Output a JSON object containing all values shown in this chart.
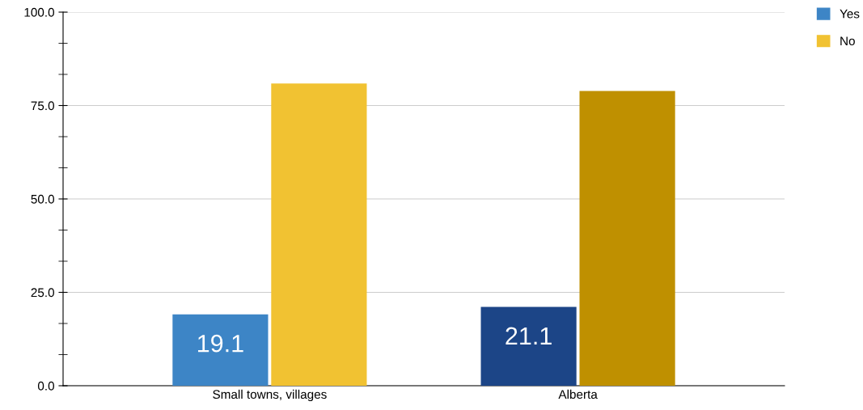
{
  "chart_data": {
    "type": "bar",
    "categories": [
      "Small towns, villages",
      "Alberta"
    ],
    "series": [
      {
        "name": "Yes",
        "color": "#3d85c6",
        "colors": [
          "#3d85c6",
          "#1c4587"
        ],
        "values": [
          19.1,
          21.1
        ],
        "value_labels": [
          "19.1",
          "21.1"
        ]
      },
      {
        "name": "No",
        "color": "#f1c232",
        "colors": [
          "#f1c232",
          "#bf9000"
        ],
        "values": [
          80.9,
          78.9
        ]
      }
    ],
    "ylim": [
      0,
      100
    ],
    "yticks": [
      {
        "value": 0,
        "label": "0.0"
      },
      {
        "value": 25,
        "label": "25.0"
      },
      {
        "value": 50,
        "label": "50.0"
      },
      {
        "value": 75,
        "label": "75.0"
      },
      {
        "value": 100,
        "label": "100.0"
      }
    ],
    "grid": "y",
    "legend": "top right"
  }
}
